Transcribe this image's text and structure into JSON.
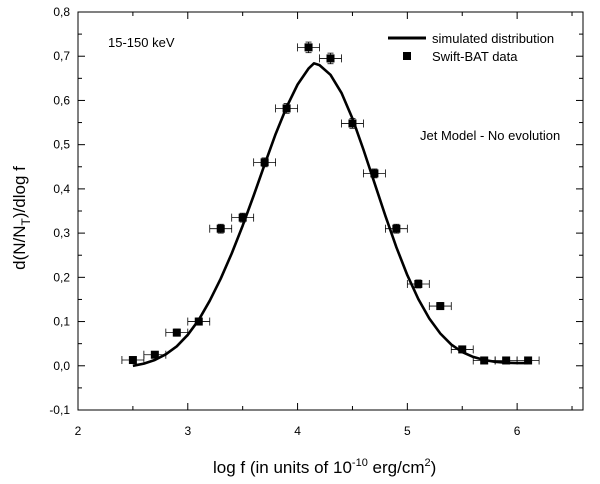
{
  "chart_data": {
    "type": "scatter",
    "xlabel": "log f (in units of 10",
    "xlabel_exp": "-10",
    "xlabel_unit": " erg/cm",
    "xlabel_unit_exp": "2",
    "xlabel_close": ")",
    "ylabel_prefix": "d(N/N",
    "ylabel_sub": "T",
    "ylabel_suffix": ")/dlog f",
    "xlim": [
      2.0,
      6.6
    ],
    "ylim": [
      -0.1,
      0.8
    ],
    "xticks": [
      2,
      3,
      4,
      5,
      6
    ],
    "xtick_labels": [
      "2",
      "3",
      "4",
      "5",
      "6"
    ],
    "yticks": [
      -0.1,
      0.0,
      0.1,
      0.2,
      0.3,
      0.4,
      0.5,
      0.6,
      0.7,
      0.8
    ],
    "ytick_labels": [
      "-0,1",
      "0,0",
      "0,1",
      "0,2",
      "0,3",
      "0,4",
      "0,5",
      "0,6",
      "0,7",
      "0,8"
    ],
    "annotations": {
      "energy_band": "15-150 keV",
      "model": "Jet Model - No evolution"
    },
    "legend": {
      "position": "top-right",
      "entries": [
        {
          "label": "simulated distribution",
          "kind": "line"
        },
        {
          "label": "Swift-BAT data",
          "kind": "marker"
        }
      ]
    },
    "series": [
      {
        "name": "simulated distribution",
        "kind": "line",
        "color": "#000000",
        "x": [
          2.5,
          2.6,
          2.7,
          2.8,
          2.9,
          3.0,
          3.1,
          3.2,
          3.3,
          3.4,
          3.5,
          3.6,
          3.7,
          3.8,
          3.9,
          4.0,
          4.1,
          4.15,
          4.2,
          4.3,
          4.4,
          4.5,
          4.6,
          4.7,
          4.8,
          4.9,
          5.0,
          5.1,
          5.2,
          5.3,
          5.4,
          5.5,
          5.6,
          5.7,
          5.8,
          5.9,
          6.0,
          6.1
        ],
        "y": [
          0.0,
          0.005,
          0.013,
          0.026,
          0.044,
          0.07,
          0.104,
          0.147,
          0.197,
          0.254,
          0.317,
          0.385,
          0.455,
          0.524,
          0.585,
          0.636,
          0.672,
          0.684,
          0.68,
          0.658,
          0.617,
          0.559,
          0.489,
          0.414,
          0.339,
          0.268,
          0.205,
          0.151,
          0.107,
          0.073,
          0.048,
          0.031,
          0.02,
          0.013,
          0.009,
          0.007,
          0.006,
          0.006
        ]
      },
      {
        "name": "Swift-BAT data",
        "kind": "points",
        "color": "#000000",
        "x": [
          2.5,
          2.7,
          2.9,
          3.1,
          3.3,
          3.5,
          3.7,
          3.9,
          4.1,
          4.3,
          4.5,
          4.7,
          4.9,
          5.1,
          5.3,
          5.5,
          5.7,
          5.9,
          6.1
        ],
        "y": [
          0.013,
          0.025,
          0.075,
          0.1,
          0.31,
          0.335,
          0.46,
          0.582,
          0.72,
          0.695,
          0.548,
          0.435,
          0.31,
          0.185,
          0.135,
          0.037,
          0.012,
          0.012,
          0.012
        ],
        "x_err": 0.1,
        "y_err": [
          0.007,
          0.007,
          0.008,
          0.008,
          0.01,
          0.01,
          0.01,
          0.011,
          0.012,
          0.012,
          0.011,
          0.01,
          0.01,
          0.009,
          0.008,
          0.007,
          0.006,
          0.006,
          0.006
        ]
      }
    ]
  }
}
